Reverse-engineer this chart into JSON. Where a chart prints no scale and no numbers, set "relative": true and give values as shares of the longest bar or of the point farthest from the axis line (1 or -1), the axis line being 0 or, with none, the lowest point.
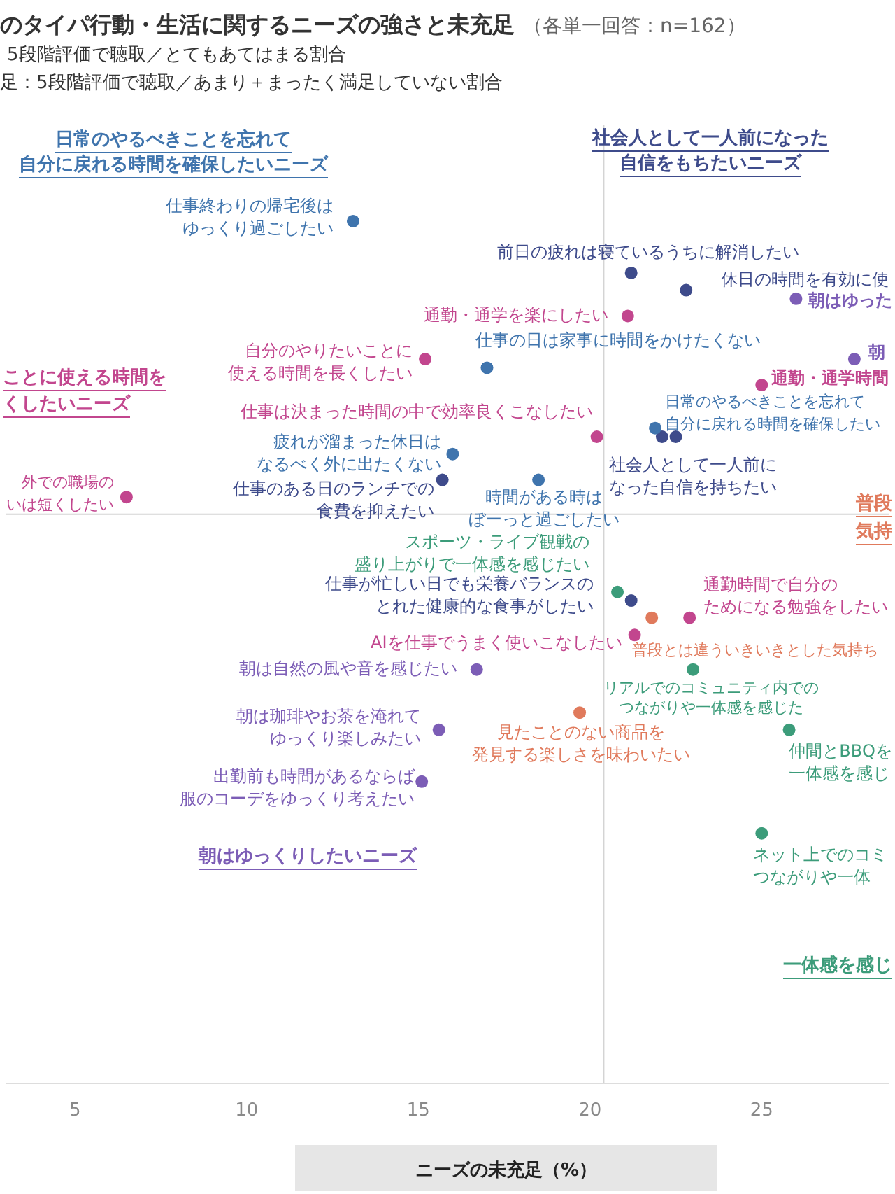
{
  "chart_data": {
    "type": "scatter",
    "title": "のタイパ行動・生活に関するニーズの強さと未充足",
    "subtitle": "（各単一回答：n=162）",
    "xlabel": "ニーズの未充足（%）",
    "relative": true,
    "xlim": [
      3.0,
      28.7
    ],
    "xticks": [
      5,
      10,
      15,
      20,
      25
    ],
    "marker": "circle",
    "ref_lines": [
      {
        "axis": "x",
        "value": 20.4,
        "color": "#d4d4d4"
      },
      {
        "axis": "y",
        "value": 0.66,
        "color": "#d4d4d4"
      }
    ],
    "series": [
      {
        "name": "日常のやるべきことを忘れて自分に戻れる時間を確保したいニーズ",
        "color": "#3f74ad",
        "x": [
          13.1,
          17.0,
          16.0,
          18.5,
          21.9
        ],
        "values": [
          1.0,
          0.83,
          0.73,
          0.7,
          0.76
        ]
      },
      {
        "name": "社会人として一人前になった自信をもちたいニーズ",
        "color": "#3e4b8b",
        "x": [
          21.2,
          22.8,
          22.1,
          22.5,
          21.2,
          15.7
        ],
        "values": [
          0.94,
          0.92,
          0.75,
          0.75,
          0.56,
          0.7
        ]
      },
      {
        "name": "ことに使える時間をくしたいニーズ",
        "color": "#c2468e",
        "x": [
          6.5,
          15.2,
          21.1,
          20.2,
          25.0,
          21.3,
          22.9
        ],
        "values": [
          0.68,
          0.84,
          0.89,
          0.75,
          0.81,
          0.52,
          0.54
        ]
      },
      {
        "name": "朝はゆっくりしたいニーズ",
        "color": "#7c5db6",
        "x": [
          16.7,
          15.6,
          15.1,
          26.0,
          27.7
        ],
        "values": [
          0.48,
          0.41,
          0.35,
          0.91,
          0.84
        ]
      },
      {
        "name": "普段気持",
        "color": "#e07a5c",
        "x": [
          21.8,
          19.7
        ],
        "values": [
          0.54,
          0.43
        ]
      },
      {
        "name": "一体感を感じ",
        "color": "#3c9c7a",
        "x": [
          20.8,
          23.0,
          25.8,
          25.0
        ],
        "values": [
          0.57,
          0.48,
          0.41,
          0.29
        ]
      }
    ],
    "annotations": [
      "5段階評価で聴取／とてもあてはまる割合",
      "足：5段階評価で聴取／あまり＋まったく満足していない割合",
      {
        "text": "仕事終わりの帰宅後はゆっくり過ごしたい",
        "x": 13.1,
        "y": 1.0
      },
      {
        "text": "仕事の日は家事に時間をかけたくない",
        "x": 17.0,
        "y": 0.83
      },
      {
        "text": "疲れが溜まった休日はなるべく外に出たくない",
        "x": 16.0,
        "y": 0.73
      },
      {
        "text": "時間がある時はぼーっと過ごしたい",
        "x": 18.5,
        "y": 0.7
      },
      {
        "text": "日常のやるべきことを忘れて自分に戻れる時間を確保したい",
        "x": 21.9,
        "y": 0.76
      },
      {
        "text": "前日の疲れは寝ているうちに解消したい",
        "x": 21.2,
        "y": 0.94
      },
      {
        "text": "休日の時間を有効に使",
        "x": 22.8,
        "y": 0.92
      },
      {
        "text": "社会人として一人前になった自信を持ちたい",
        "x": 22.1,
        "y": 0.75
      },
      {
        "text": "仕事が忙しい日でも栄養バランスのとれた健康的な食事がしたい",
        "x": 21.2,
        "y": 0.56
      },
      {
        "text": "仕事のある日のランチでの食費を抑えたい",
        "x": 15.7,
        "y": 0.7
      },
      {
        "text": "外での職場のいは短くしたい",
        "x": 6.5,
        "y": 0.68
      },
      {
        "text": "自分のやりたいことに使える時間を長くしたい",
        "x": 15.2,
        "y": 0.84
      },
      {
        "text": "通勤・通学を楽にしたい",
        "x": 21.1,
        "y": 0.89
      },
      {
        "text": "仕事は決まった時間の中で効率良くこなしたい",
        "x": 20.2,
        "y": 0.75
      },
      {
        "text": "通勤・通学時間",
        "x": 25.0,
        "y": 0.81
      },
      {
        "text": "AIを仕事でうまく使いこなしたい",
        "x": 21.3,
        "y": 0.52
      },
      {
        "text": "通勤時間で自分のためになる勉強をしたい",
        "x": 22.9,
        "y": 0.54
      },
      {
        "text": "朝は自然の風や音を感じたい",
        "x": 16.7,
        "y": 0.48
      },
      {
        "text": "朝は珈琲やお茶を淹れてゆっくり楽しみたい",
        "x": 15.6,
        "y": 0.41
      },
      {
        "text": "出勤前も時間があるならば服のコーデをゆっくり考えたい",
        "x": 15.1,
        "y": 0.35
      },
      {
        "text": "朝はゆった",
        "x": 26.0,
        "y": 0.91
      },
      {
        "text": "朝",
        "x": 27.7,
        "y": 0.84
      },
      {
        "text": "普段とは違ういきいきとした気持ち",
        "x": 21.8,
        "y": 0.54
      },
      {
        "text": "見たことのない商品を発見する楽しさを味わいたい",
        "x": 19.7,
        "y": 0.43
      },
      {
        "text": "スポーツ・ライブ観戦の盛り上がりで一体感を感じたい",
        "x": 20.8,
        "y": 0.57
      },
      {
        "text": "リアルでのコミュニティ内でのつながりや一体感を感じた",
        "x": 23.0,
        "y": 0.48
      },
      {
        "text": "仲間とBBQを一体感を感じ",
        "x": 25.8,
        "y": 0.41
      },
      {
        "text": "ネット上でのコミつながりや一体",
        "x": 25.0,
        "y": 0.29
      }
    ]
  }
}
